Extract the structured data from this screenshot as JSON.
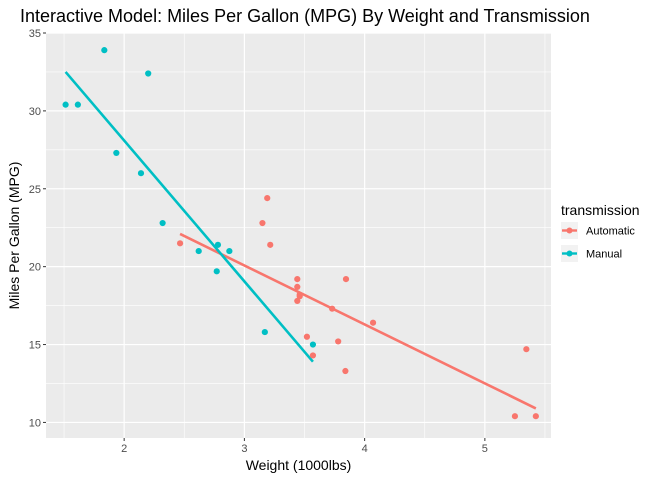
{
  "chart_data": {
    "type": "scatter",
    "title": "Interactive Model: Miles Per Gallon (MPG) By Weight and Transmission",
    "xlabel": "Weight (1000lbs)",
    "ylabel": "Miles Per Gallon (MPG)",
    "xlim": [
      1.35,
      5.55
    ],
    "ylim": [
      9.0,
      35.0
    ],
    "x_ticks": [
      2,
      3,
      4,
      5
    ],
    "y_ticks": [
      10,
      15,
      20,
      25,
      30,
      35
    ],
    "grid": true,
    "legend": {
      "title": "transmission",
      "position": "right"
    },
    "series": [
      {
        "name": "Automatic",
        "color": "#f8766d",
        "points": [
          [
            2.465,
            21.5
          ],
          [
            3.15,
            22.8
          ],
          [
            3.19,
            24.4
          ],
          [
            3.215,
            21.4
          ],
          [
            3.44,
            19.2
          ],
          [
            3.44,
            18.7
          ],
          [
            3.44,
            17.8
          ],
          [
            3.46,
            18.1
          ],
          [
            3.46,
            18.2
          ],
          [
            3.52,
            15.5
          ],
          [
            3.57,
            14.3
          ],
          [
            3.73,
            17.3
          ],
          [
            3.78,
            15.2
          ],
          [
            3.84,
            13.3
          ],
          [
            3.845,
            19.2
          ],
          [
            4.07,
            16.4
          ],
          [
            5.25,
            10.4
          ],
          [
            5.345,
            14.7
          ],
          [
            5.424,
            10.4
          ]
        ],
        "trend": [
          [
            2.465,
            22.1
          ],
          [
            5.424,
            10.9
          ]
        ]
      },
      {
        "name": "Manual",
        "color": "#00bfc4",
        "points": [
          [
            1.513,
            30.4
          ],
          [
            1.615,
            30.4
          ],
          [
            1.835,
            33.9
          ],
          [
            1.935,
            27.3
          ],
          [
            2.14,
            26.0
          ],
          [
            2.2,
            32.4
          ],
          [
            2.32,
            22.8
          ],
          [
            2.62,
            21.0
          ],
          [
            2.77,
            19.7
          ],
          [
            2.78,
            21.4
          ],
          [
            2.875,
            21.0
          ],
          [
            3.17,
            15.8
          ],
          [
            3.57,
            15.0
          ]
        ],
        "trend": [
          [
            1.513,
            32.5
          ],
          [
            3.57,
            13.9
          ]
        ]
      }
    ]
  }
}
